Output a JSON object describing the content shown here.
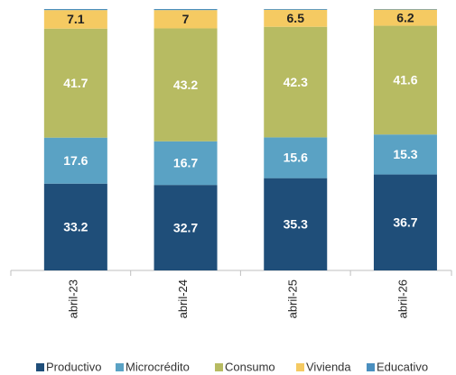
{
  "chart_data": {
    "type": "stacked-bar",
    "categories": [
      "abril-23",
      "abril-24",
      "abril-25",
      "abril-26"
    ],
    "series": [
      {
        "name": "Productivo",
        "color": "#1f4e79",
        "label_color": "#ffffff",
        "values": [
          33.2,
          32.7,
          35.3,
          36.7
        ]
      },
      {
        "name": "Microcrédito",
        "color": "#5aa2c4",
        "label_color": "#ffffff",
        "values": [
          17.6,
          16.7,
          15.6,
          15.3
        ]
      },
      {
        "name": "Consumo",
        "color": "#b7bb62",
        "label_color": "#ffffff",
        "values": [
          41.7,
          43.2,
          42.3,
          41.6
        ]
      },
      {
        "name": "Vivienda",
        "color": "#f5ca62",
        "label_color": "#222222",
        "values": [
          7.1,
          7.0,
          6.5,
          6.2
        ]
      },
      {
        "name": "Educativo",
        "color": "#4a8fbf",
        "label_color": "#ffffff",
        "values": [
          0.4,
          0.4,
          0.3,
          0.2
        ]
      }
    ],
    "ylim": [
      0,
      100
    ]
  }
}
